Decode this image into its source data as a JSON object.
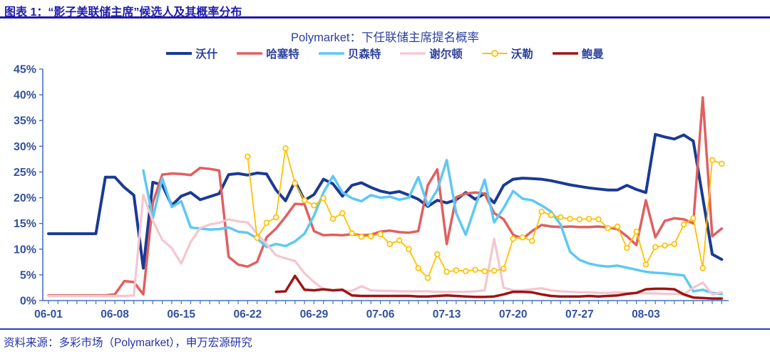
{
  "header": {
    "title": "图表 1：“影子美联储主席”候选人及其概率分布"
  },
  "source": {
    "text": "资料来源：多彩市场（Polymarket），申万宏源研究"
  },
  "colors": {
    "header_blue": "#201caa",
    "axis_line": "#4472c4",
    "axis_text": "#33519f",
    "title_text": "#2b3f9e",
    "source_text": "#2433a5"
  },
  "chart_data": {
    "type": "line",
    "title": "Polymarket：下任联储主席提名概率",
    "xlabel": "",
    "ylabel": "",
    "ylim": [
      0,
      45
    ],
    "y_tick_step": 5,
    "y_tick_labels": [
      "0%",
      "5%",
      "10%",
      "15%",
      "20%",
      "25%",
      "30%",
      "35%",
      "40%",
      "45%"
    ],
    "grid": false,
    "legend_position": "top",
    "start_date": "06-01",
    "n_points": 72,
    "x_tick_labels": [
      "06-01",
      "06-08",
      "06-15",
      "06-22",
      "06-29",
      "07-06",
      "07-13",
      "07-20",
      "07-27",
      "08-03"
    ],
    "x_tick_indices": [
      0,
      7,
      14,
      21,
      28,
      35,
      42,
      49,
      56,
      63
    ],
    "series": [
      {
        "key": "warsh",
        "name": "沃什",
        "color": "#1a3a94",
        "line_width": 4,
        "marker": false,
        "values": [
          13,
          13,
          13,
          13,
          13,
          13,
          24,
          24,
          22,
          20.5,
          6.3,
          23,
          22.5,
          18.5,
          20.3,
          21,
          19.6,
          20.2,
          20.8,
          24.5,
          24.7,
          24.4,
          24.8,
          24.6,
          21.5,
          19.4,
          23.2,
          19.5,
          20.6,
          23.6,
          22.7,
          20.3,
          22.4,
          22.9,
          22,
          21.3,
          20.9,
          21.2,
          20.5,
          19.7,
          18.3,
          19.5,
          19,
          19.6,
          21,
          19.7,
          20.8,
          19,
          22.4,
          23.6,
          23.8,
          23.7,
          23.6,
          23.3,
          22.9,
          22.5,
          22.2,
          21.9,
          21.7,
          21.5,
          21.5,
          22.4,
          21.6,
          21,
          32.3,
          31.8,
          31.4,
          32.2,
          31,
          20,
          9,
          8
        ]
      },
      {
        "key": "hassett",
        "name": "哈塞特",
        "color": "#e06060",
        "line_width": 3.5,
        "marker": false,
        "values": [
          1,
          1,
          1,
          1,
          1,
          1,
          1,
          1.2,
          3.8,
          3.6,
          1.2,
          19,
          24.5,
          24.7,
          24.6,
          24.4,
          25.8,
          25.6,
          25.3,
          8.5,
          7,
          6.6,
          7.5,
          12.3,
          14,
          16.3,
          18.8,
          18.7,
          13.5,
          12.7,
          12.8,
          12.7,
          12.9,
          12.7,
          12.8,
          13.4,
          13.6,
          13.3,
          13.2,
          13.5,
          22.4,
          25.5,
          11,
          20.1,
          20.8,
          21,
          20.8,
          17,
          15.8,
          12.8,
          12,
          13.5,
          14.7,
          14.4,
          14.3,
          14.4,
          14.3,
          14.3,
          14.4,
          14.2,
          13.9,
          12.5,
          10.8,
          19.5,
          12.3,
          15.5,
          16,
          15.8,
          15,
          39.5,
          12.5,
          14
        ]
      },
      {
        "key": "bessent",
        "name": "贝森特",
        "color": "#5ec8f2",
        "line_width": 3.5,
        "marker": false,
        "values": [
          null,
          null,
          null,
          null,
          null,
          null,
          null,
          null,
          null,
          null,
          25.3,
          16,
          23.8,
          18.2,
          19.3,
          14.2,
          14,
          13.8,
          13.9,
          14.2,
          13.4,
          13.2,
          12.1,
          10.4,
          11,
          10.6,
          11.5,
          13,
          16.5,
          21,
          24.2,
          21,
          19.9,
          19.3,
          20.5,
          20,
          20.2,
          19.6,
          20,
          24,
          18.5,
          21.5,
          27.3,
          17,
          12.8,
          18.3,
          23.5,
          15.2,
          18,
          21.3,
          19.8,
          19.5,
          18.5,
          17.3,
          14.8,
          9.5,
          7.9,
          7.2,
          6.8,
          6.6,
          6.8,
          6.4,
          6,
          5.6,
          5.4,
          5.3,
          5.1,
          4.9,
          1.8,
          2.1,
          1.5,
          1.3
        ]
      },
      {
        "key": "shelton",
        "name": "谢尔顿",
        "color": "#f4c6ce",
        "line_width": 3.2,
        "marker": false,
        "values": [
          0.9,
          0.9,
          0.9,
          0.9,
          0.9,
          0.9,
          0.9,
          0.9,
          0.9,
          1,
          20.5,
          15.5,
          11.8,
          10.2,
          7.2,
          11.4,
          14.1,
          14.8,
          15.1,
          15.8,
          15.4,
          15.2,
          13,
          11,
          8.8,
          8.2,
          7.7,
          5.3,
          3.6,
          2.2,
          2,
          1.9,
          1.9,
          2.8,
          2,
          1.9,
          1.9,
          1.8,
          1.8,
          1.8,
          1.8,
          1.7,
          1.7,
          1.7,
          1.7,
          1.8,
          2,
          12,
          2.5,
          2,
          2,
          2.2,
          2.4,
          2,
          1.8,
          1.7,
          1.6,
          1.6,
          1.5,
          1.5,
          1.6,
          1.5,
          1.5,
          1.4,
          1.4,
          1.3,
          1.3,
          1.2,
          2.5,
          3.5,
          1.2,
          1.6
        ]
      },
      {
        "key": "waller",
        "name": "沃勒",
        "color": "#ffc000",
        "line_width": 1.8,
        "marker": true,
        "values": [
          null,
          null,
          null,
          null,
          null,
          null,
          null,
          null,
          null,
          null,
          null,
          null,
          null,
          null,
          null,
          null,
          null,
          null,
          null,
          null,
          null,
          28,
          12.2,
          15.1,
          16.2,
          29.6,
          22.8,
          19.5,
          18.5,
          19.9,
          15.9,
          17,
          13.1,
          12.4,
          12.5,
          12.9,
          11,
          11.7,
          10,
          6.3,
          4.4,
          9,
          5.6,
          5.9,
          5.7,
          6,
          5.7,
          5.8,
          6.2,
          12,
          12.3,
          11.6,
          17.3,
          16.6,
          16.2,
          15.9,
          15.8,
          15.9,
          15.8,
          14.1,
          14.4,
          10.2,
          13.4,
          7,
          10.4,
          10.7,
          11,
          14.8,
          16,
          6.3,
          27.3,
          26.6
        ]
      },
      {
        "key": "bowman",
        "name": "鲍曼",
        "color": "#9e1414",
        "line_width": 3.5,
        "marker": false,
        "values": [
          null,
          null,
          null,
          null,
          null,
          null,
          null,
          null,
          null,
          null,
          null,
          null,
          null,
          null,
          null,
          null,
          null,
          null,
          null,
          null,
          null,
          null,
          null,
          null,
          1.7,
          1.8,
          4.8,
          2.1,
          2,
          2.2,
          2,
          2.1,
          1,
          0.9,
          0.9,
          0.9,
          0.9,
          0.9,
          0.9,
          0.8,
          0.8,
          0.9,
          1,
          0.9,
          0.8,
          0.7,
          0.7,
          0.8,
          1.2,
          1.7,
          1.7,
          1.6,
          1.2,
          0.9,
          0.8,
          0.8,
          0.8,
          0.9,
          0.8,
          0.9,
          1,
          1.3,
          1.5,
          2.2,
          2.3,
          2.3,
          2.2,
          1.2,
          0.6,
          0.5,
          0.4,
          0.4
        ]
      }
    ]
  }
}
